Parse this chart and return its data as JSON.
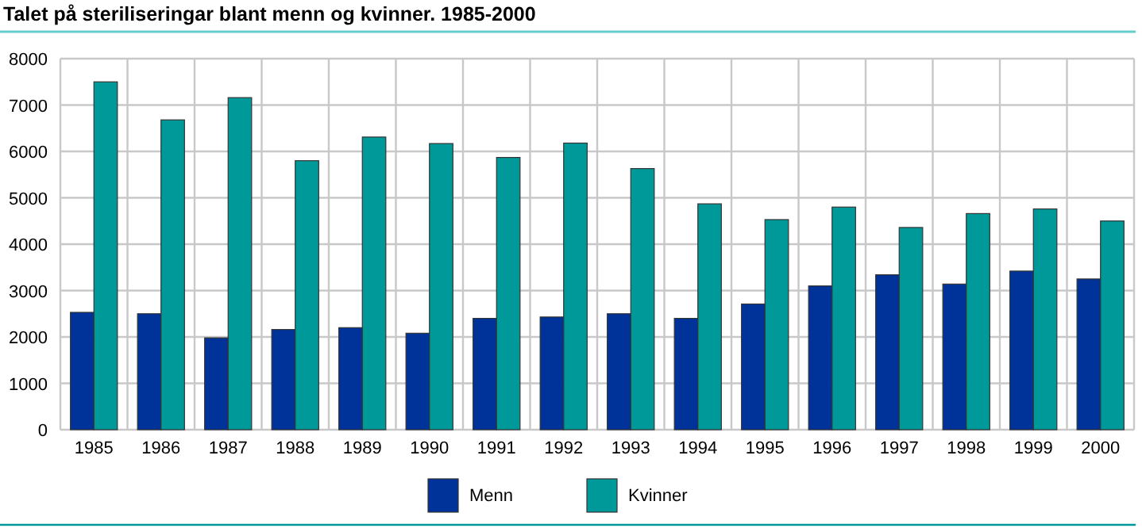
{
  "chart_data": {
    "type": "bar",
    "title": "Talet på steriliseringar blant menn og kvinner. 1985-2000",
    "categories": [
      "1985",
      "1986",
      "1987",
      "1988",
      "1989",
      "1990",
      "1991",
      "1992",
      "1993",
      "1994",
      "1995",
      "1996",
      "1997",
      "1998",
      "1999",
      "2000"
    ],
    "series": [
      {
        "name": "Menn",
        "color": "#003399",
        "values": [
          2530,
          2500,
          1980,
          2160,
          2200,
          2080,
          2400,
          2430,
          2500,
          2400,
          2710,
          3100,
          3340,
          3140,
          3420,
          3250
        ]
      },
      {
        "name": "Kvinner",
        "color": "#009999",
        "values": [
          7500,
          6680,
          7160,
          5800,
          6310,
          6170,
          5870,
          6180,
          5630,
          4870,
          4530,
          4800,
          4360,
          4660,
          4760,
          4500
        ]
      }
    ],
    "ylim": [
      0,
      8000
    ],
    "yticks": [
      0,
      1000,
      2000,
      3000,
      4000,
      5000,
      6000,
      7000,
      8000
    ],
    "grid": true,
    "legend": "bottom"
  }
}
